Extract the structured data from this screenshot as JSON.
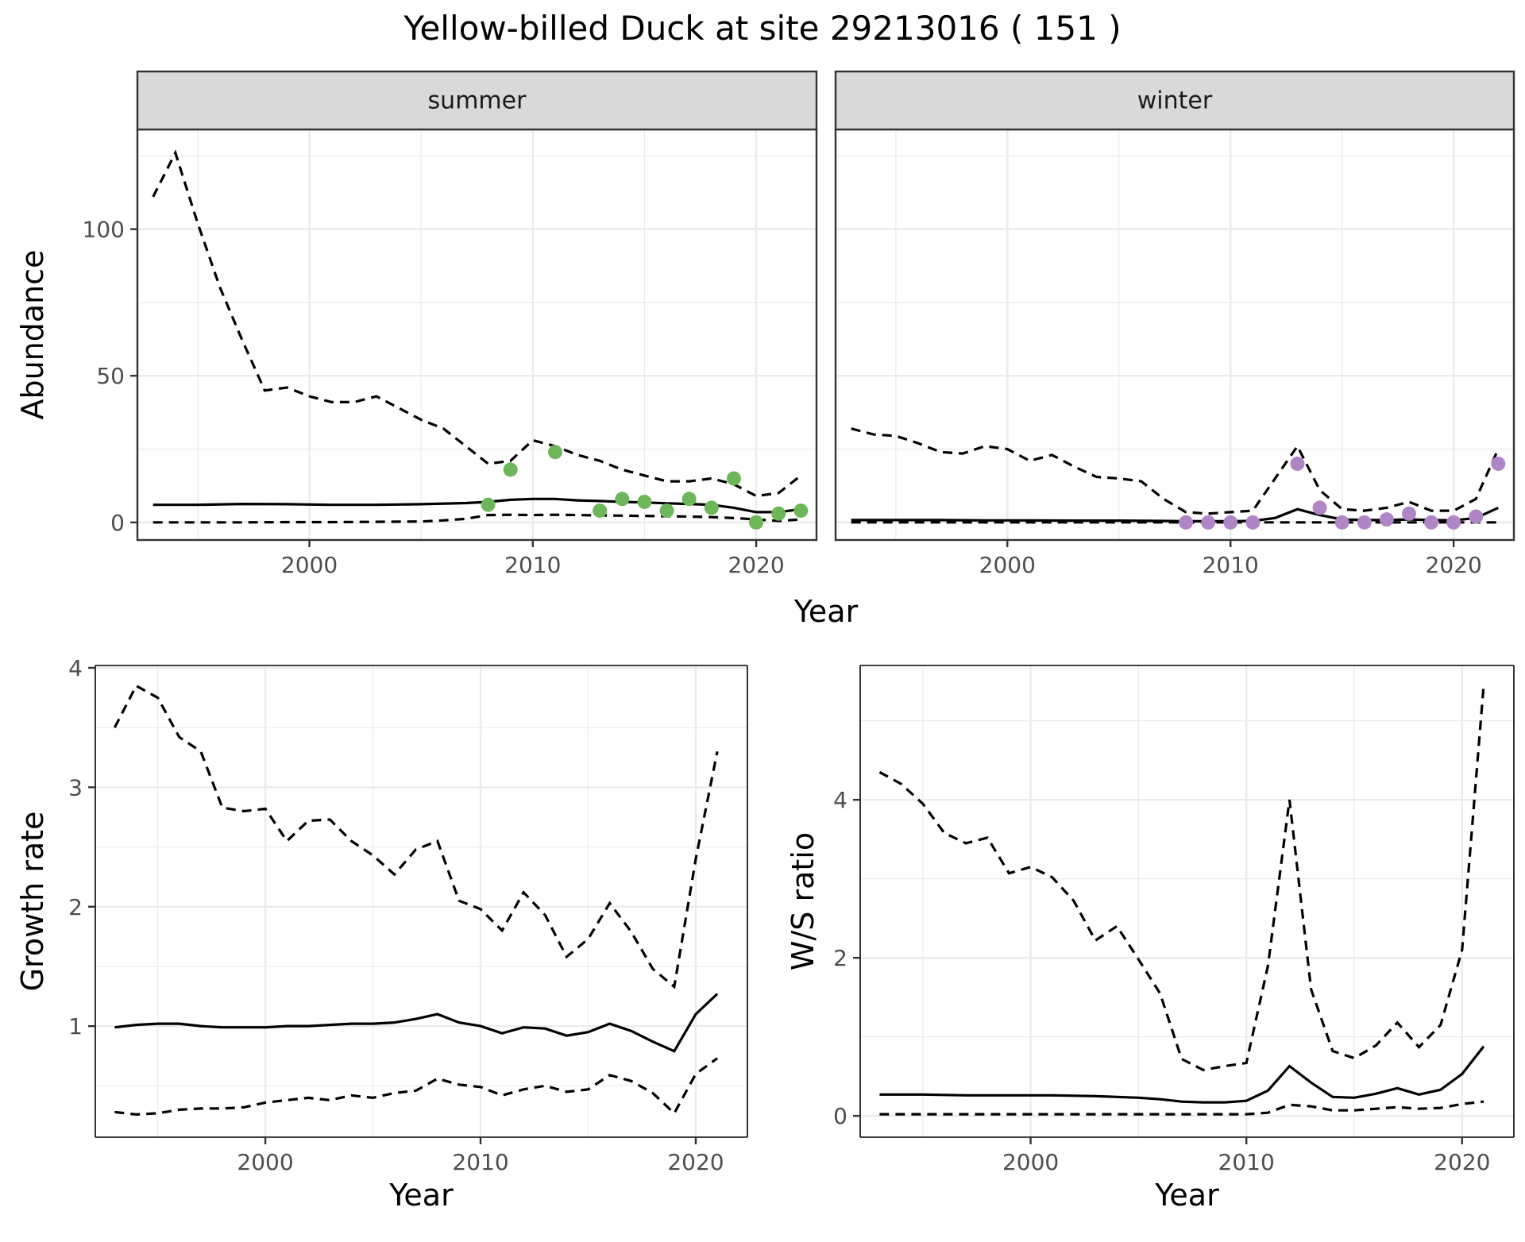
{
  "title": "Yellow-billed Duck at site 29213016 ( 151 )",
  "colors": {
    "summer_points": "#6db75a",
    "winter_points": "#b085c6",
    "strip_bg": "#d9d9d9"
  },
  "chart_data": [
    {
      "type": "line",
      "panel": "summer",
      "strip": "summer",
      "xlabel": "Year",
      "ylabel": "Abundance",
      "xlim": [
        1992.3,
        2022.7
      ],
      "ylim": [
        -6,
        134
      ],
      "xticks": [
        2000,
        2010,
        2020
      ],
      "yticks": [
        0,
        50,
        100
      ],
      "point_color": "#6db75a",
      "series": [
        {
          "role": "mean",
          "style": "solid",
          "x": [
            1993,
            1995,
            1997,
            1999,
            2001,
            2003,
            2005,
            2007,
            2008,
            2009,
            2010,
            2011,
            2012,
            2013,
            2014,
            2015,
            2016,
            2017,
            2018,
            2019,
            2020,
            2021,
            2022
          ],
          "y": [
            6,
            6,
            6.3,
            6.2,
            6,
            6,
            6.2,
            6.6,
            7,
            7.7,
            8,
            8,
            7.5,
            7.3,
            7,
            6.8,
            6.5,
            6.3,
            6,
            5,
            3.5,
            3.5,
            4.5
          ]
        },
        {
          "role": "upper",
          "style": "dashed",
          "x": [
            1993,
            1994,
            1995,
            1996,
            1997,
            1998,
            1999,
            2000,
            2001,
            2002,
            2003,
            2004,
            2005,
            2006,
            2007,
            2008,
            2009,
            2010,
            2011,
            2012,
            2013,
            2014,
            2015,
            2016,
            2017,
            2018,
            2019,
            2020,
            2021,
            2022
          ],
          "y": [
            111,
            126,
            102,
            80,
            62,
            45,
            46,
            43,
            41,
            41,
            43,
            39,
            35,
            32,
            26,
            20,
            21,
            28,
            26,
            23,
            21,
            18,
            16,
            14,
            14,
            15,
            13,
            9,
            10,
            16
          ]
        },
        {
          "role": "lower",
          "style": "dashed",
          "x": [
            1993,
            1995,
            1997,
            1999,
            2001,
            2003,
            2005,
            2006,
            2007,
            2008,
            2009,
            2010,
            2011,
            2012,
            2013,
            2014,
            2015,
            2016,
            2017,
            2018,
            2019,
            2020,
            2021,
            2022
          ],
          "y": [
            0,
            0,
            0,
            0.1,
            0.1,
            0.2,
            0.3,
            0.7,
            1.2,
            2.5,
            2.6,
            2.5,
            2.6,
            2.5,
            2.4,
            2.3,
            2.2,
            2.1,
            2,
            1.8,
            1.5,
            1,
            0.5,
            1
          ]
        },
        {
          "role": "observed",
          "style": "points",
          "x": [
            2008,
            2009,
            2011,
            2013,
            2014,
            2015,
            2016,
            2017,
            2018,
            2019,
            2020,
            2021,
            2022
          ],
          "y": [
            6,
            18,
            24,
            4,
            8,
            7,
            4,
            8,
            5,
            15,
            0,
            3,
            4
          ]
        }
      ]
    },
    {
      "type": "line",
      "panel": "winter",
      "strip": "winter",
      "xlabel": "Year",
      "ylabel": "",
      "xlim": [
        1992.3,
        2022.7
      ],
      "ylim": [
        -6,
        134
      ],
      "xticks": [
        2000,
        2010,
        2020
      ],
      "yticks": [
        0,
        50,
        100
      ],
      "point_color": "#b085c6",
      "series": [
        {
          "role": "mean",
          "style": "solid",
          "x": [
            1993,
            1995,
            1997,
            1999,
            2001,
            2003,
            2005,
            2007,
            2008,
            2009,
            2010,
            2011,
            2012,
            2013,
            2014,
            2015,
            2016,
            2017,
            2018,
            2019,
            2020,
            2021,
            2022
          ],
          "y": [
            0.8,
            0.8,
            0.8,
            0.7,
            0.7,
            0.6,
            0.6,
            0.5,
            0.4,
            0.4,
            0.4,
            0.5,
            1.5,
            4.5,
            2.5,
            1,
            0.8,
            0.8,
            1,
            0.8,
            0.7,
            1.5,
            5
          ]
        },
        {
          "role": "upper",
          "style": "dashed",
          "x": [
            1993,
            1994,
            1995,
            1996,
            1997,
            1998,
            1999,
            2000,
            2001,
            2002,
            2003,
            2004,
            2005,
            2006,
            2007,
            2008,
            2009,
            2010,
            2011,
            2012,
            2013,
            2014,
            2015,
            2016,
            2017,
            2018,
            2019,
            2020,
            2021,
            2022
          ],
          "y": [
            32,
            30,
            29.5,
            27,
            24,
            23.5,
            26,
            25,
            21,
            23,
            19,
            15.5,
            15,
            14,
            8,
            3.5,
            3,
            3.5,
            4,
            15,
            26,
            11,
            4.5,
            4,
            5,
            7,
            4,
            4,
            8,
            25
          ]
        },
        {
          "role": "lower",
          "style": "dashed",
          "x": [
            1993,
            2000,
            2005,
            2010,
            2015,
            2020,
            2022
          ],
          "y": [
            0,
            0,
            0,
            0,
            0,
            0,
            0
          ]
        },
        {
          "role": "observed",
          "style": "points",
          "x": [
            2008,
            2009,
            2010,
            2011,
            2013,
            2014,
            2015,
            2016,
            2017,
            2018,
            2019,
            2020,
            2021,
            2022
          ],
          "y": [
            0,
            0,
            0,
            0,
            20,
            5,
            0,
            0,
            1,
            3,
            0,
            0,
            2,
            20
          ]
        }
      ]
    },
    {
      "type": "line",
      "panel": "growth",
      "xlabel": "Year",
      "ylabel": "Growth rate",
      "xlim": [
        1992.1,
        2022.4
      ],
      "ylim": [
        0.07,
        4.02
      ],
      "xticks": [
        2000,
        2010,
        2020
      ],
      "yticks": [
        1,
        2,
        3,
        4
      ],
      "series": [
        {
          "role": "mean",
          "style": "solid",
          "x": [
            1993,
            1994,
            1995,
            1996,
            1997,
            1998,
            1999,
            2000,
            2001,
            2002,
            2003,
            2004,
            2005,
            2006,
            2007,
            2008,
            2009,
            2010,
            2011,
            2012,
            2013,
            2014,
            2015,
            2016,
            2017,
            2018,
            2019,
            2020,
            2021
          ],
          "y": [
            0.99,
            1.01,
            1.02,
            1.02,
            1,
            0.99,
            0.99,
            0.99,
            1,
            1,
            1.01,
            1.02,
            1.02,
            1.03,
            1.06,
            1.1,
            1.03,
            1,
            0.94,
            0.99,
            0.98,
            0.92,
            0.95,
            1.02,
            0.96,
            0.87,
            0.79,
            1.1,
            1.27
          ]
        },
        {
          "role": "upper",
          "style": "dashed",
          "x": [
            1993,
            1994,
            1995,
            1996,
            1997,
            1998,
            1999,
            2000,
            2001,
            2002,
            2003,
            2004,
            2005,
            2006,
            2007,
            2008,
            2009,
            2010,
            2011,
            2012,
            2013,
            2014,
            2015,
            2016,
            2017,
            2018,
            2019,
            2020,
            2021
          ],
          "y": [
            3.5,
            3.85,
            3.75,
            3.42,
            3.3,
            2.83,
            2.8,
            2.82,
            2.55,
            2.72,
            2.73,
            2.55,
            2.43,
            2.27,
            2.48,
            2.55,
            2.05,
            1.98,
            1.8,
            2.12,
            1.93,
            1.58,
            1.73,
            2.03,
            1.79,
            1.48,
            1.33,
            2.4,
            3.3
          ]
        },
        {
          "role": "lower",
          "style": "dashed",
          "x": [
            1993,
            1994,
            1995,
            1996,
            1997,
            1998,
            1999,
            2000,
            2001,
            2002,
            2003,
            2004,
            2005,
            2006,
            2007,
            2008,
            2009,
            2010,
            2011,
            2012,
            2013,
            2014,
            2015,
            2016,
            2017,
            2018,
            2019,
            2020,
            2021
          ],
          "y": [
            0.28,
            0.26,
            0.27,
            0.3,
            0.31,
            0.31,
            0.32,
            0.36,
            0.38,
            0.4,
            0.38,
            0.42,
            0.4,
            0.44,
            0.46,
            0.56,
            0.51,
            0.49,
            0.42,
            0.47,
            0.5,
            0.45,
            0.47,
            0.59,
            0.54,
            0.44,
            0.27,
            0.6,
            0.73
          ]
        }
      ]
    },
    {
      "type": "line",
      "panel": "ratio",
      "xlabel": "Year",
      "ylabel": "W/S ratio",
      "xlim": [
        1992.1,
        2022.4
      ],
      "ylim": [
        -0.27,
        5.7
      ],
      "xticks": [
        2000,
        2010,
        2020
      ],
      "yticks": [
        0,
        2,
        4
      ],
      "series": [
        {
          "role": "mean",
          "style": "solid",
          "x": [
            1993,
            1995,
            1997,
            1999,
            2001,
            2003,
            2004,
            2005,
            2006,
            2007,
            2008,
            2009,
            2010,
            2011,
            2012,
            2013,
            2014,
            2015,
            2016,
            2017,
            2018,
            2019,
            2020,
            2021
          ],
          "y": [
            0.27,
            0.27,
            0.26,
            0.26,
            0.26,
            0.25,
            0.24,
            0.23,
            0.21,
            0.18,
            0.17,
            0.17,
            0.19,
            0.32,
            0.63,
            0.42,
            0.24,
            0.23,
            0.28,
            0.35,
            0.27,
            0.33,
            0.53,
            0.88
          ]
        },
        {
          "role": "upper",
          "style": "dashed",
          "x": [
            1993,
            1994,
            1995,
            1996,
            1997,
            1998,
            1999,
            2000,
            2001,
            2002,
            2003,
            2004,
            2005,
            2006,
            2007,
            2008,
            2009,
            2010,
            2011,
            2012,
            2013,
            2014,
            2015,
            2016,
            2017,
            2018,
            2019,
            2020,
            2021
          ],
          "y": [
            4.35,
            4.2,
            3.95,
            3.58,
            3.45,
            3.52,
            3.07,
            3.15,
            3.02,
            2.72,
            2.22,
            2.4,
            1.98,
            1.55,
            0.72,
            0.58,
            0.63,
            0.67,
            1.9,
            4.0,
            1.6,
            0.82,
            0.73,
            0.89,
            1.18,
            0.87,
            1.15,
            2.1,
            5.45
          ]
        },
        {
          "role": "lower",
          "style": "dashed",
          "x": [
            1993,
            1995,
            1997,
            1999,
            2001,
            2003,
            2005,
            2007,
            2009,
            2010,
            2011,
            2012,
            2013,
            2014,
            2015,
            2016,
            2017,
            2018,
            2019,
            2020,
            2021
          ],
          "y": [
            0.02,
            0.02,
            0.02,
            0.02,
            0.02,
            0.02,
            0.02,
            0.02,
            0.02,
            0.02,
            0.04,
            0.14,
            0.12,
            0.07,
            0.07,
            0.09,
            0.11,
            0.09,
            0.1,
            0.15,
            0.18
          ]
        }
      ]
    }
  ]
}
